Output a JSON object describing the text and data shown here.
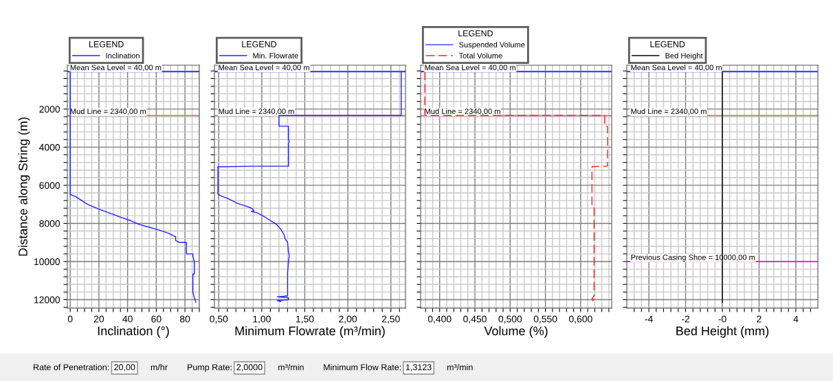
{
  "chart_data": [
    {
      "type": "line",
      "xlabel": "Inclination (°)",
      "ylabel": "Distance along String (m)",
      "legend": "top left",
      "legend_title": "LEGEND",
      "grid": true,
      "xlim": [
        -2,
        90
      ],
      "ylim": [
        12450,
        -300
      ],
      "xticks": [
        0,
        {
          "value": 5,
          "label": null
        },
        {
          "value": 10,
          "label": null
        },
        {
          "value": 15,
          "label": null
        },
        20,
        {
          "value": 25,
          "label": null
        },
        {
          "value": 30,
          "label": null
        },
        {
          "value": 35,
          "label": null
        },
        40,
        {
          "value": 45,
          "label": null
        },
        {
          "value": 50,
          "label": null
        },
        {
          "value": 55,
          "label": null
        },
        60,
        {
          "value": 65,
          "label": null
        },
        {
          "value": 70,
          "label": null
        },
        {
          "value": 75,
          "label": null
        },
        80,
        {
          "value": 85,
          "label": null
        },
        {
          "value": 90,
          "label": null
        }
      ],
      "yticks": [
        {
          "value": 0,
          "label": null
        },
        {
          "value": 400,
          "label": null
        },
        {
          "value": 800,
          "label": null
        },
        {
          "value": 1200,
          "label": null
        },
        {
          "value": 1600,
          "label": null
        },
        2000,
        {
          "value": 2400,
          "label": null
        },
        {
          "value": 2800,
          "label": null
        },
        {
          "value": 3200,
          "label": null
        },
        {
          "value": 3600,
          "label": null
        },
        4000,
        {
          "value": 4400,
          "label": null
        },
        {
          "value": 4800,
          "label": null
        },
        {
          "value": 5200,
          "label": null
        },
        {
          "value": 5600,
          "label": null
        },
        6000,
        {
          "value": 6400,
          "label": null
        },
        {
          "value": 6800,
          "label": null
        },
        {
          "value": 7200,
          "label": null
        },
        {
          "value": 7600,
          "label": null
        },
        8000,
        {
          "value": 8400,
          "label": null
        },
        {
          "value": 8800,
          "label": null
        },
        {
          "value": 9200,
          "label": null
        },
        {
          "value": 9600,
          "label": null
        },
        10000,
        {
          "value": 10400,
          "label": null
        },
        {
          "value": 10800,
          "label": null
        },
        {
          "value": 11200,
          "label": null
        },
        {
          "value": 11600,
          "label": null
        },
        12000,
        {
          "value": 12400,
          "label": null
        }
      ],
      "series": [
        {
          "name": "Inclination",
          "color": "#2020ff",
          "line_style": "solid",
          "x": [
            0,
            0,
            2,
            4,
            12,
            20,
            29,
            36,
            42,
            48,
            55,
            62,
            68,
            73.5,
            73.5,
            76,
            81,
            81,
            85.5,
            85.5,
            86.5,
            86.5,
            85.5,
            85.5,
            86.5,
            87.5,
            87.5
          ],
          "values": [
            40,
            6480,
            6540,
            6600,
            7000,
            7250,
            7500,
            7700,
            7850,
            8050,
            8200,
            8350,
            8500,
            8700,
            8900,
            9000,
            9000,
            9600,
            9600,
            9700,
            10000,
            10650,
            10650,
            11600,
            11900,
            12100,
            12150
          ]
        }
      ],
      "ref_lines": [
        {
          "axis": "y",
          "value": 40,
          "label": "Mean Sea Level = 40,00 m",
          "color": "#2020ff"
        },
        {
          "axis": "y",
          "value": 2340,
          "label": "Mud Line = 2340,00 m",
          "color": "#c08068"
        }
      ],
      "annotations": [
        "Rate of Penetration:",
        "20,00",
        "m/hr",
        "Pump Rate:",
        "2,0000",
        "m³/min",
        "Minimum Flow Rate:",
        "1,3123",
        "m³/min"
      ]
    },
    {
      "type": "line",
      "xlabel": "Minimum Flowrate (m³/min)",
      "legend": "top left",
      "legend_title": "LEGEND",
      "grid": true,
      "tick_labels": "x",
      "xlim": [
        0.45,
        2.67
      ],
      "ylim": [
        12450,
        -300
      ],
      "xticks": [
        {
          "value": 0.5,
          "label": "0,50"
        },
        {
          "value": 0.6,
          "label": null
        },
        {
          "value": 0.7,
          "label": null
        },
        {
          "value": 0.8,
          "label": null
        },
        {
          "value": 0.9,
          "label": null
        },
        {
          "value": 1.0,
          "label": "1,00"
        },
        {
          "value": 1.1,
          "label": null
        },
        {
          "value": 1.2,
          "label": null
        },
        {
          "value": 1.3,
          "label": null
        },
        {
          "value": 1.4,
          "label": null
        },
        {
          "value": 1.5,
          "label": "1,50"
        },
        {
          "value": 1.6,
          "label": null
        },
        {
          "value": 1.7,
          "label": null
        },
        {
          "value": 1.8,
          "label": null
        },
        {
          "value": 1.9,
          "label": null
        },
        {
          "value": 2.0,
          "label": "2,00"
        },
        {
          "value": 2.1,
          "label": null
        },
        {
          "value": 2.2,
          "label": null
        },
        {
          "value": 2.3,
          "label": null
        },
        {
          "value": 2.4,
          "label": null
        },
        {
          "value": 2.5,
          "label": "2,50"
        },
        {
          "value": 2.6,
          "label": null
        }
      ],
      "yticks": [
        {
          "value": 0,
          "label": null
        },
        {
          "value": 400,
          "label": null
        },
        {
          "value": 800,
          "label": null
        },
        {
          "value": 1200,
          "label": null
        },
        {
          "value": 1600,
          "label": null
        },
        2000,
        {
          "value": 2400,
          "label": null
        },
        {
          "value": 2800,
          "label": null
        },
        {
          "value": 3200,
          "label": null
        },
        {
          "value": 3600,
          "label": null
        },
        4000,
        {
          "value": 4400,
          "label": null
        },
        {
          "value": 4800,
          "label": null
        },
        {
          "value": 5200,
          "label": null
        },
        {
          "value": 5600,
          "label": null
        },
        6000,
        {
          "value": 6400,
          "label": null
        },
        {
          "value": 6800,
          "label": null
        },
        {
          "value": 7200,
          "label": null
        },
        {
          "value": 7600,
          "label": null
        },
        8000,
        {
          "value": 8400,
          "label": null
        },
        {
          "value": 8800,
          "label": null
        },
        {
          "value": 9200,
          "label": null
        },
        {
          "value": 9600,
          "label": null
        },
        10000,
        {
          "value": 10400,
          "label": null
        },
        {
          "value": 10800,
          "label": null
        },
        {
          "value": 11200,
          "label": null
        },
        {
          "value": 11600,
          "label": null
        },
        12000,
        {
          "value": 12400,
          "label": null
        }
      ],
      "series": [
        {
          "name": "Min. Flowrate",
          "color": "#2020ff",
          "line_style": "solid",
          "x": [
            2.62,
            2.62,
            1.2,
            1.2,
            1.31,
            1.31,
            1.32,
            1.31,
            1.31,
            0.9,
            0.49,
            0.49,
            0.52,
            0.61,
            0.72,
            0.82,
            0.88,
            0.91,
            0.88,
            0.95,
            1.03,
            1.1,
            1.17,
            1.22,
            1.26,
            1.27,
            1.3,
            1.31,
            1.32,
            1.31,
            1.3,
            1.3,
            1.18,
            1.31,
            1.31,
            1.18,
            1.22
          ],
          "values": [
            40,
            2340,
            2340,
            2900,
            2900,
            3600,
            3700,
            3800,
            5000,
            5000,
            5030,
            6450,
            6550,
            6700,
            6950,
            7100,
            7200,
            7330,
            7370,
            7450,
            7650,
            7850,
            8050,
            8300,
            8600,
            8800,
            9000,
            9500,
            9700,
            10000,
            10600,
            11800,
            11850,
            11900,
            12000,
            12050,
            12100
          ]
        }
      ],
      "ref_lines": [
        {
          "axis": "y",
          "value": 40,
          "label": "Mean Sea Level = 40,00 m",
          "color": "#2020ff"
        },
        {
          "axis": "y",
          "value": 2340,
          "label": "Mud Line = 2340,00 m",
          "color": "#c08068"
        }
      ]
    },
    {
      "type": "line",
      "xlabel": "Volume (%)",
      "legend": "top left",
      "legend_title": "LEGEND",
      "grid": true,
      "tick_labels": "x",
      "xlim": [
        0.373,
        0.644
      ],
      "ylim": [
        12450,
        -300
      ],
      "xticks": [
        {
          "value": 0.38,
          "label": null
        },
        {
          "value": 0.39,
          "label": null
        },
        {
          "value": 0.4,
          "label": "0,400"
        },
        {
          "value": 0.41,
          "label": null
        },
        {
          "value": 0.42,
          "label": null
        },
        {
          "value": 0.43,
          "label": null
        },
        {
          "value": 0.44,
          "label": null
        },
        {
          "value": 0.45,
          "label": "0,450"
        },
        {
          "value": 0.46,
          "label": null
        },
        {
          "value": 0.47,
          "label": null
        },
        {
          "value": 0.48,
          "label": null
        },
        {
          "value": 0.49,
          "label": null
        },
        {
          "value": 0.5,
          "label": "0,500"
        },
        {
          "value": 0.51,
          "label": null
        },
        {
          "value": 0.52,
          "label": null
        },
        {
          "value": 0.53,
          "label": null
        },
        {
          "value": 0.54,
          "label": null
        },
        {
          "value": 0.55,
          "label": "0,550"
        },
        {
          "value": 0.56,
          "label": null
        },
        {
          "value": 0.57,
          "label": null
        },
        {
          "value": 0.58,
          "label": null
        },
        {
          "value": 0.59,
          "label": null
        },
        {
          "value": 0.6,
          "label": "0,600"
        },
        {
          "value": 0.61,
          "label": null
        },
        {
          "value": 0.62,
          "label": null
        },
        {
          "value": 0.63,
          "label": null
        },
        {
          "value": 0.64,
          "label": null
        }
      ],
      "yticks": [
        {
          "value": 0,
          "label": null
        },
        {
          "value": 400,
          "label": null
        },
        {
          "value": 800,
          "label": null
        },
        {
          "value": 1200,
          "label": null
        },
        {
          "value": 1600,
          "label": null
        },
        2000,
        {
          "value": 2400,
          "label": null
        },
        {
          "value": 2800,
          "label": null
        },
        {
          "value": 3200,
          "label": null
        },
        {
          "value": 3600,
          "label": null
        },
        4000,
        {
          "value": 4400,
          "label": null
        },
        {
          "value": 4800,
          "label": null
        },
        {
          "value": 5200,
          "label": null
        },
        {
          "value": 5600,
          "label": null
        },
        6000,
        {
          "value": 6400,
          "label": null
        },
        {
          "value": 6800,
          "label": null
        },
        {
          "value": 7200,
          "label": null
        },
        {
          "value": 7600,
          "label": null
        },
        8000,
        {
          "value": 8400,
          "label": null
        },
        {
          "value": 8800,
          "label": null
        },
        {
          "value": 9200,
          "label": null
        },
        {
          "value": 9600,
          "label": null
        },
        10000,
        {
          "value": 10400,
          "label": null
        },
        {
          "value": 10800,
          "label": null
        },
        {
          "value": 11200,
          "label": null
        },
        {
          "value": 11600,
          "label": null
        },
        12000,
        {
          "value": 12400,
          "label": null
        }
      ],
      "series": [
        {
          "name": "Suspended Volume",
          "color": "#2020ff",
          "line_style": "solid"
        },
        {
          "name": "Total Volume",
          "color": "#ff2020",
          "line_style": "dashed",
          "x": [
            0.379,
            0.379,
            0.634,
            0.634,
            0.638,
            0.638,
            0.631,
            0.616,
            0.616,
            0.619,
            0.619,
            0.616,
            0.618,
            0.616
          ],
          "values": [
            40,
            2340,
            2340,
            2900,
            2900,
            5000,
            5000,
            5020,
            7100,
            7150,
            11800,
            11950,
            12000,
            12100
          ]
        }
      ],
      "ref_lines": [
        {
          "axis": "y",
          "value": 40,
          "label": "Mean Sea Level = 40,00 m",
          "color": "#2020ff"
        },
        {
          "axis": "y",
          "value": 2340,
          "label": "Mud Line = 2340,00 m",
          "color": "#c08068"
        }
      ]
    },
    {
      "type": "line",
      "xlabel": "Bed Height (mm)",
      "legend": "top left",
      "legend_title": "LEGEND",
      "grid": true,
      "tick_labels": "x",
      "xlim": [
        -5.2,
        5.2
      ],
      "ylim": [
        12450,
        -300
      ],
      "xticks": [
        {
          "value": -4.8,
          "label": null
        },
        {
          "value": -4.4,
          "label": null
        },
        -4,
        {
          "value": -3.6,
          "label": null
        },
        {
          "value": -3.2,
          "label": null
        },
        {
          "value": -2.8,
          "label": null
        },
        {
          "value": -2.4,
          "label": null
        },
        -2,
        {
          "value": -1.6,
          "label": null
        },
        {
          "value": -1.2,
          "label": null
        },
        {
          "value": -0.8,
          "label": null
        },
        {
          "value": -0.4,
          "label": null
        },
        {
          "value": 0,
          "label": "-0"
        },
        {
          "value": 0.4,
          "label": null
        },
        {
          "value": 0.8,
          "label": null
        },
        {
          "value": 1.2,
          "label": null
        },
        {
          "value": 1.6,
          "label": null
        },
        2,
        {
          "value": 2.4,
          "label": null
        },
        {
          "value": 2.8,
          "label": null
        },
        {
          "value": 3.2,
          "label": null
        },
        {
          "value": 3.6,
          "label": null
        },
        4,
        {
          "value": 4.4,
          "label": null
        },
        {
          "value": 4.8,
          "label": null
        }
      ],
      "yticks": [
        {
          "value": 0,
          "label": null
        },
        {
          "value": 400,
          "label": null
        },
        {
          "value": 800,
          "label": null
        },
        {
          "value": 1200,
          "label": null
        },
        {
          "value": 1600,
          "label": null
        },
        2000,
        {
          "value": 2400,
          "label": null
        },
        {
          "value": 2800,
          "label": null
        },
        {
          "value": 3200,
          "label": null
        },
        {
          "value": 3600,
          "label": null
        },
        4000,
        {
          "value": 4400,
          "label": null
        },
        {
          "value": 4800,
          "label": null
        },
        {
          "value": 5200,
          "label": null
        },
        {
          "value": 5600,
          "label": null
        },
        6000,
        {
          "value": 6400,
          "label": null
        },
        {
          "value": 6800,
          "label": null
        },
        {
          "value": 7200,
          "label": null
        },
        {
          "value": 7600,
          "label": null
        },
        8000,
        {
          "value": 8400,
          "label": null
        },
        {
          "value": 8800,
          "label": null
        },
        {
          "value": 9200,
          "label": null
        },
        {
          "value": 9600,
          "label": null
        },
        10000,
        {
          "value": 10400,
          "label": null
        },
        {
          "value": 10800,
          "label": null
        },
        {
          "value": 11200,
          "label": null
        },
        {
          "value": 11600,
          "label": null
        },
        12000,
        {
          "value": 12400,
          "label": null
        }
      ],
      "series": [
        {
          "name": "Bed Height",
          "color": "#000000",
          "line_style": "solid",
          "x": [
            0,
            0
          ],
          "values": [
            40,
            12150
          ]
        }
      ],
      "ref_lines": [
        {
          "axis": "y",
          "value": 40,
          "label": "Mean Sea Level = 40,00 m",
          "color": "#2020ff"
        },
        {
          "axis": "y",
          "value": 2340,
          "label": "Mud Line = 2340,00 m",
          "color": "#c08068"
        },
        {
          "axis": "y",
          "value": 10000,
          "label": "Previous Casing Shoe = 10000,00 m",
          "color": "#ff00ff"
        }
      ]
    }
  ]
}
